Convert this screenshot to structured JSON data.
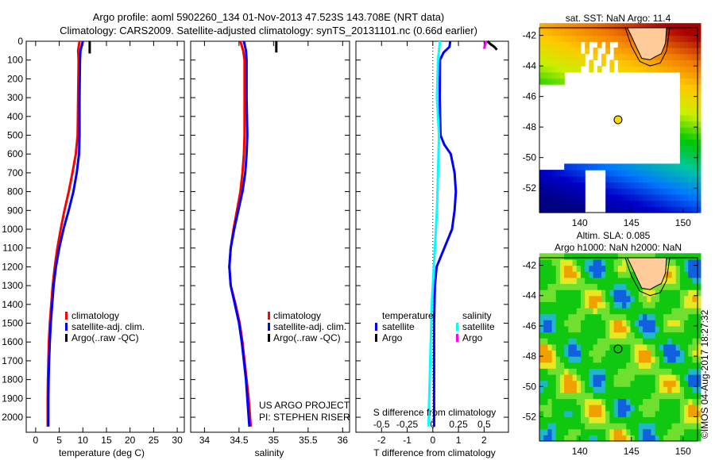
{
  "header": {
    "title_line1": "Argo profile: aoml 5902260_134 01-Nov-2013 47.523S 143.708E (NRT data)",
    "title_line2": "Climatology: CARS2009. Satellite-adjusted climatology: synTS_20131101.nc (0.66d earlier)"
  },
  "colors": {
    "climatology": "#ff0000",
    "satellite": "#0000ff",
    "argo": "#000000",
    "satellite_s": "#00ffff",
    "argo_s": "#ff00ff"
  },
  "chart_data": [
    {
      "type": "line",
      "id": "temperature",
      "xlabel": "temperature (deg C)",
      "ylabel": "",
      "xlim": [
        -2,
        31.5
      ],
      "ylim": [
        2080,
        0
      ],
      "xticks": [
        "0",
        "5",
        "10",
        "15",
        "20",
        "25",
        "30"
      ],
      "xtick_values": [
        0,
        5,
        10,
        15,
        20,
        25,
        30
      ],
      "yticks": [
        "0",
        "100",
        "200",
        "300",
        "400",
        "500",
        "600",
        "700",
        "800",
        "900",
        "1000",
        "1100",
        "1200",
        "1300",
        "1400",
        "1500",
        "1600",
        "1700",
        "1800",
        "1900",
        "2000"
      ],
      "legend": [
        "climatology",
        "satellite-adj. clim.",
        "Argo(..raw -QC)"
      ],
      "legend_position": "lower-right",
      "series": [
        {
          "name": "climatology",
          "color": "#ff0000",
          "depth": [
            0,
            50,
            100,
            300,
            500,
            600,
            700,
            800,
            900,
            1000,
            1100,
            1200,
            1300,
            1400,
            1500,
            1600,
            1700,
            1800,
            1900,
            2000,
            2050
          ],
          "values": [
            9.3,
            9.0,
            9.1,
            9.0,
            8.9,
            8.5,
            7.8,
            7.0,
            6.1,
            5.3,
            4.6,
            4.05,
            3.6,
            3.3,
            3.0,
            2.8,
            2.7,
            2.6,
            2.55,
            2.55,
            2.55
          ]
        },
        {
          "name": "satellite-adj. clim.",
          "color": "#0000ff",
          "depth": [
            0,
            50,
            100,
            300,
            500,
            600,
            700,
            800,
            900,
            1000,
            1100,
            1200,
            1300,
            1400,
            1500,
            1600,
            1700,
            1800,
            1900,
            2000,
            2050
          ],
          "values": [
            10.0,
            9.5,
            9.4,
            9.3,
            9.3,
            9.2,
            8.7,
            8.0,
            7.0,
            5.9,
            5.0,
            4.3,
            3.8,
            3.5,
            3.2,
            3.0,
            2.85,
            2.75,
            2.7,
            2.7,
            2.7
          ]
        },
        {
          "name": "Argo(..raw -QC)",
          "color": "#000000",
          "depth": [
            0,
            65
          ],
          "values": [
            11.45,
            11.45
          ]
        }
      ]
    },
    {
      "type": "line",
      "id": "salinity",
      "xlabel": "salinity",
      "xlim": [
        33.8,
        36.1
      ],
      "ylim": [
        2080,
        0
      ],
      "xticks": [
        "34",
        "34.5",
        "35",
        "35.5",
        "36"
      ],
      "xtick_values": [
        34,
        34.5,
        35,
        35.5,
        36
      ],
      "legend": [
        "climatology",
        "satellite-adj. clim.",
        "Argo(..raw -QC)"
      ],
      "legend_position": "lower-right",
      "annotation": [
        "US ARGO PROJECT",
        "PI: STEPHEN RISER"
      ],
      "series": [
        {
          "name": "climatology",
          "color": "#ff0000",
          "depth": [
            0,
            50,
            100,
            300,
            500,
            600,
            700,
            800,
            900,
            1000,
            1100,
            1200,
            1300,
            1400,
            1500,
            1600,
            1700,
            1800,
            1900,
            2000,
            2050
          ],
          "values": [
            34.52,
            34.56,
            34.58,
            34.58,
            34.58,
            34.57,
            34.55,
            34.52,
            34.47,
            34.42,
            34.38,
            34.36,
            34.38,
            34.45,
            34.51,
            34.55,
            34.58,
            34.61,
            34.64,
            34.66,
            34.67
          ]
        },
        {
          "name": "satellite-adj. clim.",
          "color": "#0000ff",
          "depth": [
            0,
            50,
            100,
            300,
            500,
            600,
            700,
            800,
            900,
            1000,
            1100,
            1200,
            1300,
            1400,
            1500,
            1600,
            1700,
            1800,
            1900,
            2000,
            2050
          ],
          "values": [
            34.57,
            34.6,
            34.61,
            34.61,
            34.62,
            34.61,
            34.59,
            34.55,
            34.49,
            34.43,
            34.38,
            34.36,
            34.38,
            34.44,
            34.5,
            34.54,
            34.57,
            34.6,
            34.62,
            34.64,
            34.65
          ]
        },
        {
          "name": "Argo(..raw -QC)",
          "color": "#000000",
          "depth": [
            0,
            60
          ],
          "values": [
            35.04,
            35.04
          ]
        }
      ]
    },
    {
      "type": "line",
      "id": "difference",
      "xlabel": "T difference from climatology",
      "xlabel_top": "S difference from climatology",
      "xlim": [
        -3.0,
        2.95
      ],
      "ylim": [
        2080,
        0
      ],
      "xticks": [
        "-2",
        "-1",
        "0",
        "1",
        "2"
      ],
      "xtick_values": [
        -2,
        -1,
        0,
        1,
        2
      ],
      "sticks": [
        "-0.5",
        "-0.25",
        "0",
        "0.25",
        "0.5"
      ],
      "stick_values": [
        -0.5,
        -0.25,
        0,
        0.25,
        0.5
      ],
      "legend_headers": [
        "temperature",
        "salinity"
      ],
      "legend": [
        "satellite",
        "Argo",
        "satellite",
        "Argo"
      ],
      "legend_position": "lower-center",
      "series": [
        {
          "name": "T satellite",
          "color": "#0000ff",
          "depth": [
            0,
            30,
            60,
            100,
            300,
            500,
            550,
            600,
            700,
            800,
            900,
            1000,
            1100,
            1200,
            1300,
            1500,
            1700,
            2000,
            2050
          ],
          "values": [
            0.68,
            0.65,
            0.42,
            0.28,
            0.27,
            0.3,
            0.45,
            0.7,
            0.85,
            0.9,
            0.85,
            0.75,
            0.45,
            0.15,
            0.08,
            0.05,
            0.05,
            0.05,
            0.05
          ]
        },
        {
          "name": "T Argo",
          "color": "#000000",
          "depth": [
            0,
            15,
            30,
            45
          ],
          "values": [
            2.13,
            2.25,
            2.4,
            2.5
          ]
        },
        {
          "name": "S satellite",
          "color": "#00ffff",
          "depth": [
            0,
            100,
            300,
            500,
            700,
            900,
            1000,
            1200,
            1400,
            1600,
            1800,
            2000,
            2050
          ],
          "values": [
            0.07,
            0.05,
            0.04,
            0.06,
            0.05,
            0.04,
            0.03,
            0.01,
            -0.01,
            -0.02,
            -0.03,
            -0.04,
            -0.04
          ]
        },
        {
          "name": "S Argo",
          "color": "#ff00ff",
          "depth": [
            0,
            20,
            40
          ],
          "values": [
            0.52,
            0.51,
            0.5
          ]
        }
      ]
    },
    {
      "type": "heatmap",
      "id": "sst-map",
      "title": "sat. SST: NaN Argo: 11.4",
      "xlim": [
        136.1,
        151.4
      ],
      "ylim": [
        -53.6,
        -41.5
      ],
      "xticks": [
        "140",
        "145",
        "150"
      ],
      "xtick_values": [
        140,
        145,
        150
      ],
      "yticks": [
        "-42",
        "-44",
        "-46",
        "-48",
        "-50",
        "-52"
      ],
      "ytick_values": [
        -42,
        -44,
        -46,
        -48,
        -50,
        -52
      ],
      "float_position": {
        "lon": 143.708,
        "lat": -47.523
      }
    },
    {
      "type": "heatmap",
      "id": "sla-map",
      "title_line1": "Altim. SLA: 0.085",
      "title_line2": "Argo h1000: NaN h2000: NaN",
      "xlim": [
        136.1,
        151.4
      ],
      "ylim": [
        -53.6,
        -41.5
      ],
      "xticks": [
        "140",
        "145",
        "150"
      ],
      "xtick_values": [
        140,
        145,
        150
      ],
      "yticks": [
        "-42",
        "-44",
        "-46",
        "-48",
        "-50",
        "-52"
      ],
      "ytick_values": [
        -42,
        -44,
        -46,
        -48,
        -50,
        -52
      ],
      "float_position": {
        "lon": 143.708,
        "lat": -47.523
      },
      "credit": "©IMOS 04-Aug-2017 18:27:32"
    }
  ]
}
